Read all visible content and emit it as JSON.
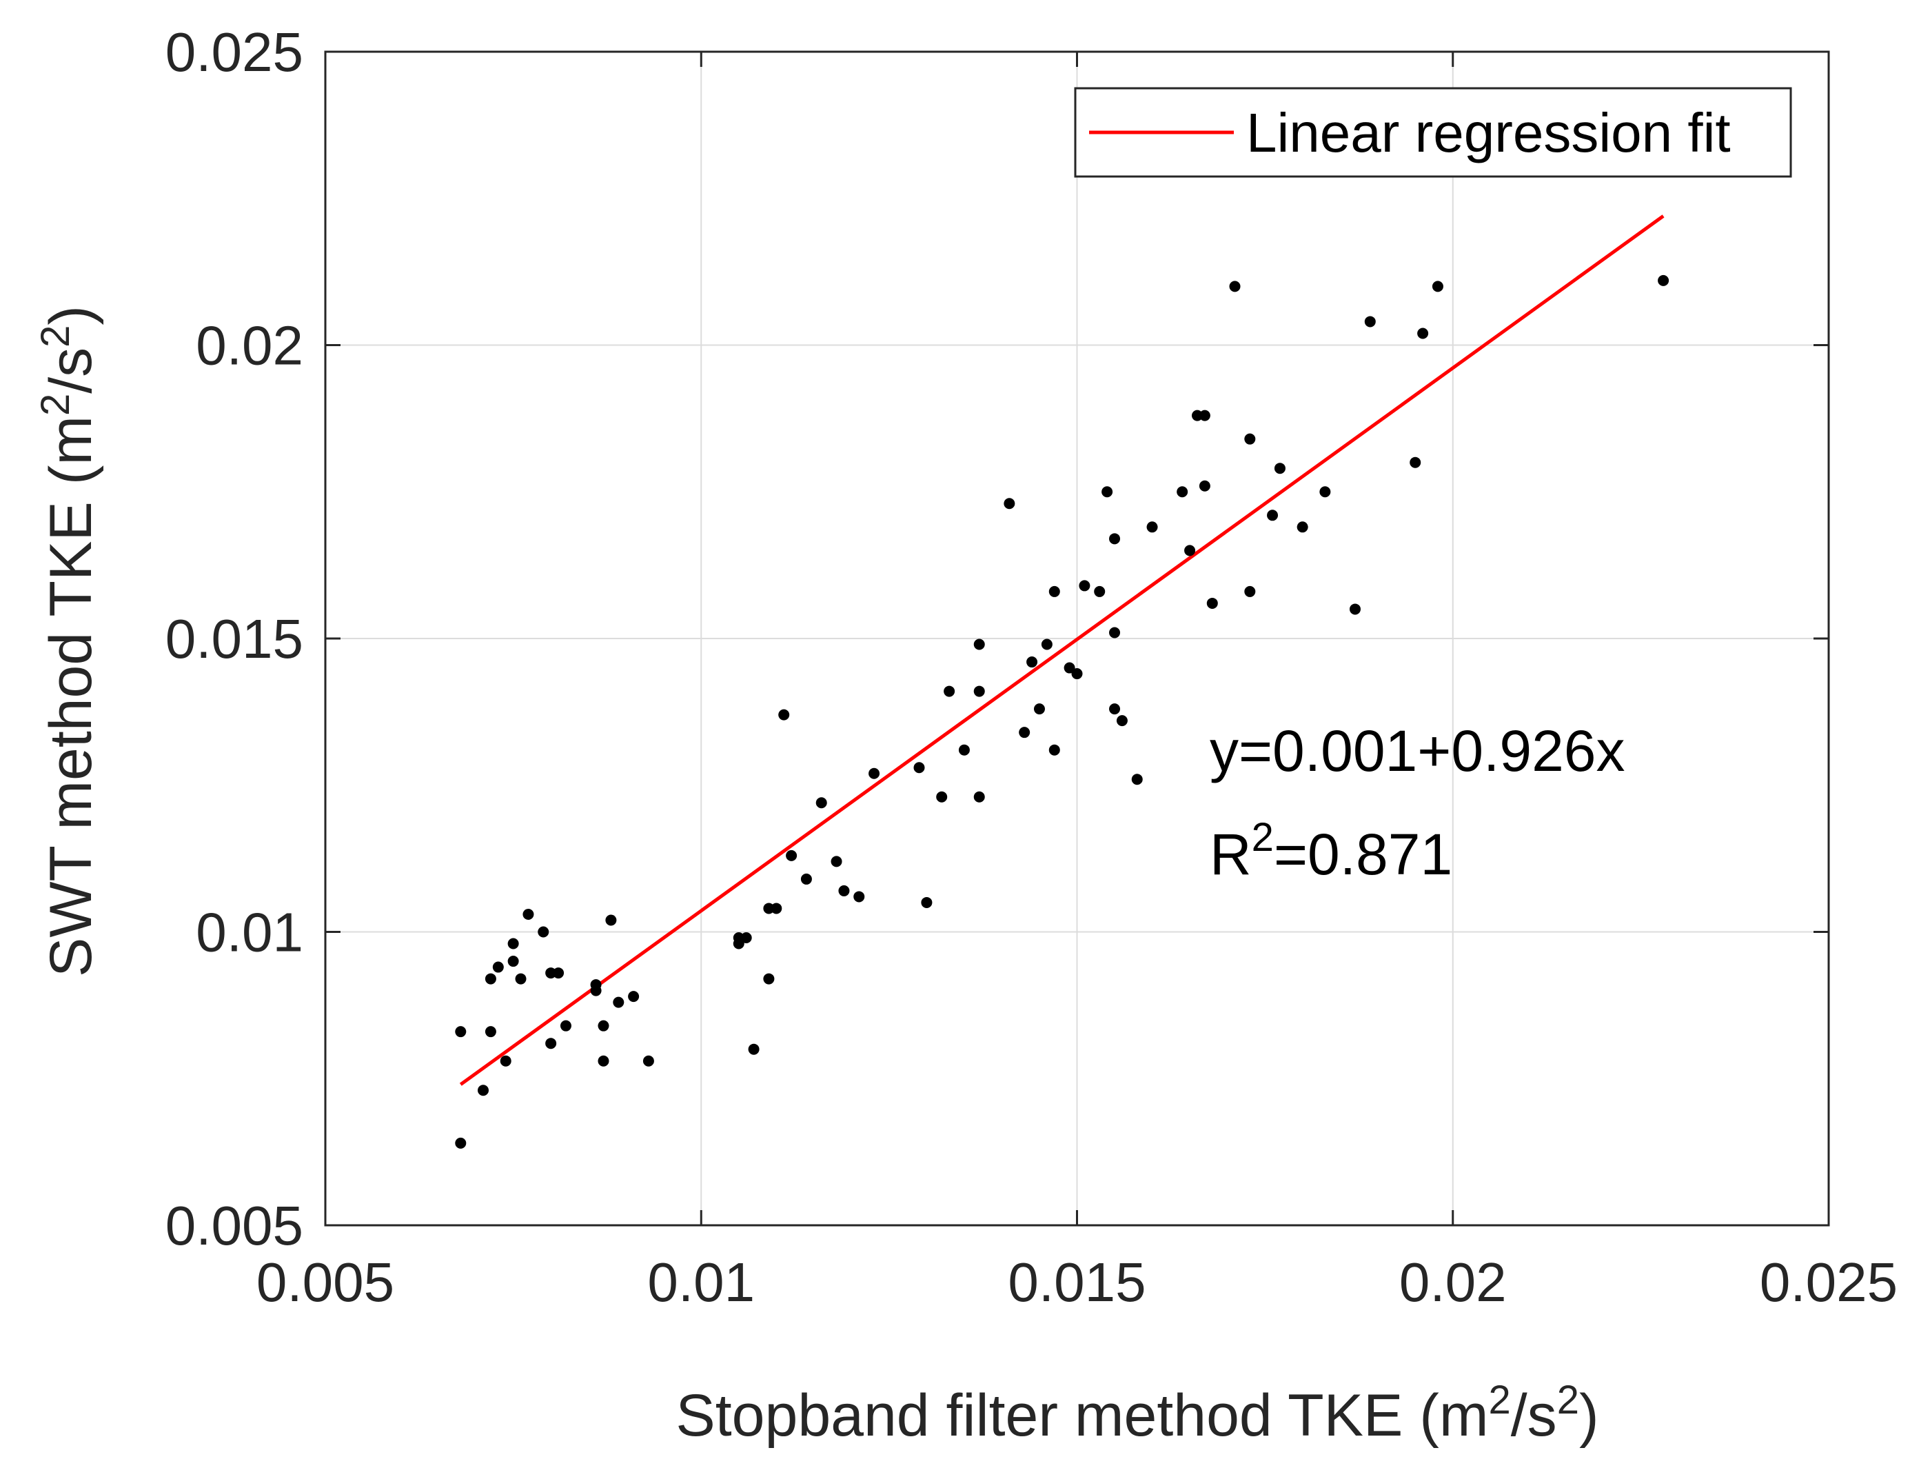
{
  "chart_data": {
    "type": "scatter",
    "title": "",
    "xlabel": {
      "prefix": "Stopband filter method TKE (m",
      "sup": "2",
      "mid": "/s",
      "sup2": "2",
      "suffix": ")"
    },
    "ylabel": {
      "prefix": "SWT method TKE (m",
      "sup": "2",
      "mid": "/s",
      "sup2": "2",
      "suffix": ")"
    },
    "xlim": [
      0.005,
      0.025
    ],
    "ylim": [
      0.005,
      0.025
    ],
    "xticks": [
      0.005,
      0.01,
      0.015,
      0.02,
      0.025
    ],
    "yticks": [
      0.005,
      0.01,
      0.015,
      0.02,
      0.025
    ],
    "xtick_labels": [
      "0.005",
      "0.01",
      "0.015",
      "0.02",
      "0.025"
    ],
    "ytick_labels": [
      "0.005",
      "0.01",
      "0.015",
      "0.02",
      "0.025"
    ],
    "grid": true,
    "legend": {
      "position": "top-right",
      "entries": [
        {
          "name": "Linear regression fit",
          "color": "#ff0000"
        }
      ]
    },
    "fit": {
      "x": [
        0.0068,
        0.0228
      ],
      "y": [
        0.0074,
        0.0222
      ],
      "color": "#ff0000"
    },
    "annotation": {
      "equation": "y=0.001+0.926x",
      "r2_prefix": "R",
      "r2_sup": "2",
      "r2_value": "=0.871"
    },
    "marker_color": "#000000",
    "points": [
      [
        0.0068,
        0.0083
      ],
      [
        0.0068,
        0.0064
      ],
      [
        0.0071,
        0.0073
      ],
      [
        0.0072,
        0.0083
      ],
      [
        0.0072,
        0.0092
      ],
      [
        0.0073,
        0.0094
      ],
      [
        0.0074,
        0.0078
      ],
      [
        0.0075,
        0.0095
      ],
      [
        0.0075,
        0.0098
      ],
      [
        0.0076,
        0.0092
      ],
      [
        0.0077,
        0.0103
      ],
      [
        0.0079,
        0.01
      ],
      [
        0.008,
        0.0093
      ],
      [
        0.008,
        0.0081
      ],
      [
        0.0081,
        0.0093
      ],
      [
        0.0082,
        0.0084
      ],
      [
        0.0086,
        0.0091
      ],
      [
        0.0086,
        0.009
      ],
      [
        0.0087,
        0.0084
      ],
      [
        0.0087,
        0.0078
      ],
      [
        0.0088,
        0.0102
      ],
      [
        0.0089,
        0.0088
      ],
      [
        0.0091,
        0.0089
      ],
      [
        0.0093,
        0.0078
      ],
      [
        0.0105,
        0.0099
      ],
      [
        0.0105,
        0.0098
      ],
      [
        0.0106,
        0.0099
      ],
      [
        0.0107,
        0.008
      ],
      [
        0.0109,
        0.0104
      ],
      [
        0.0109,
        0.0092
      ],
      [
        0.011,
        0.0104
      ],
      [
        0.0111,
        0.0137
      ],
      [
        0.0112,
        0.0113
      ],
      [
        0.0114,
        0.0109
      ],
      [
        0.0116,
        0.0122
      ],
      [
        0.0118,
        0.0112
      ],
      [
        0.0119,
        0.0107
      ],
      [
        0.0121,
        0.0106
      ],
      [
        0.0123,
        0.0127
      ],
      [
        0.0129,
        0.0128
      ],
      [
        0.013,
        0.0105
      ],
      [
        0.0132,
        0.0123
      ],
      [
        0.0133,
        0.0141
      ],
      [
        0.0135,
        0.0131
      ],
      [
        0.0137,
        0.0141
      ],
      [
        0.0137,
        0.0149
      ],
      [
        0.0137,
        0.0123
      ],
      [
        0.0141,
        0.0173
      ],
      [
        0.0143,
        0.0134
      ],
      [
        0.0144,
        0.0146
      ],
      [
        0.0145,
        0.0138
      ],
      [
        0.0146,
        0.0149
      ],
      [
        0.0147,
        0.0131
      ],
      [
        0.0147,
        0.0158
      ],
      [
        0.0149,
        0.0145
      ],
      [
        0.015,
        0.0144
      ],
      [
        0.0151,
        0.0159
      ],
      [
        0.0153,
        0.0158
      ],
      [
        0.0154,
        0.0175
      ],
      [
        0.0155,
        0.0138
      ],
      [
        0.0155,
        0.0151
      ],
      [
        0.0155,
        0.0167
      ],
      [
        0.0156,
        0.0136
      ],
      [
        0.0158,
        0.0126
      ],
      [
        0.016,
        0.0169
      ],
      [
        0.0164,
        0.0175
      ],
      [
        0.0165,
        0.0165
      ],
      [
        0.0166,
        0.0188
      ],
      [
        0.0167,
        0.0188
      ],
      [
        0.0167,
        0.0176
      ],
      [
        0.0168,
        0.0156
      ],
      [
        0.0171,
        0.021
      ],
      [
        0.0173,
        0.0158
      ],
      [
        0.0173,
        0.0184
      ],
      [
        0.0176,
        0.0171
      ],
      [
        0.0177,
        0.0179
      ],
      [
        0.018,
        0.0169
      ],
      [
        0.0183,
        0.0175
      ],
      [
        0.0187,
        0.0155
      ],
      [
        0.0189,
        0.0204
      ],
      [
        0.0195,
        0.018
      ],
      [
        0.0196,
        0.0202
      ],
      [
        0.0198,
        0.021
      ],
      [
        0.0228,
        0.0211
      ]
    ]
  }
}
